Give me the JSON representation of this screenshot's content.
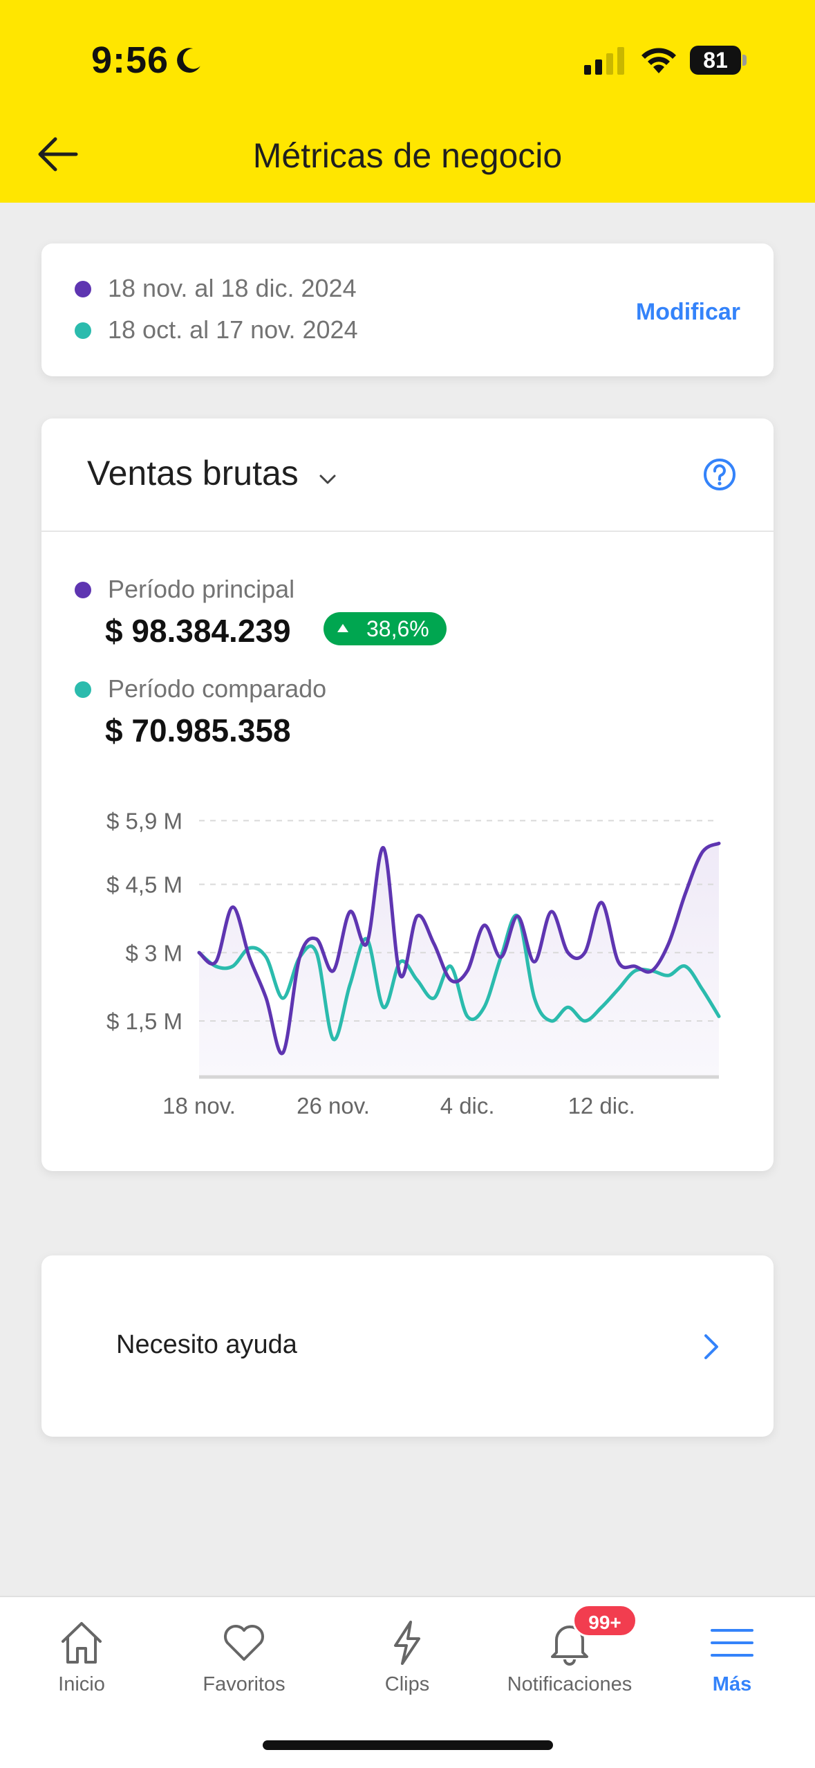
{
  "status_bar": {
    "time": "9:56",
    "battery": "81"
  },
  "header": {
    "title": "Métricas de negocio"
  },
  "period_card": {
    "main_period": "18 nov. al 18 dic. 2024",
    "compared_period": "18 oct. al 17 nov. 2024",
    "modify_label": "Modificar"
  },
  "metric_card": {
    "metric_selector": "Ventas brutas",
    "main_label": "Período principal",
    "main_amount": "$ 98.384.239",
    "growth": "38,6%",
    "compared_label": "Período comparado",
    "compared_amount": "$ 70.985.358"
  },
  "chart_data": {
    "type": "line",
    "y_ticks": [
      "$ 5,9 M",
      "$ 4,5 M",
      "$ 3 M",
      "$ 1,5 M"
    ],
    "y_tick_values": [
      5.9,
      4.5,
      3.0,
      1.5
    ],
    "x_ticks": [
      "18 nov.",
      "26 nov.",
      "4 dic.",
      "12 dic."
    ],
    "x_tick_days": [
      0,
      8,
      16,
      24
    ],
    "ylim": [
      0.3,
      6.3
    ],
    "xlim": [
      0,
      31
    ],
    "grid": true,
    "series": [
      {
        "color": "#5e35b1",
        "x": [
          0,
          1,
          2,
          3,
          4,
          5,
          6,
          7,
          8,
          9,
          10,
          11,
          12,
          13,
          14,
          15,
          16,
          17,
          18,
          19,
          20,
          21,
          22,
          23,
          24,
          25,
          26,
          27,
          28,
          29,
          30,
          31
        ],
        "values": [
          3.0,
          2.8,
          4.0,
          2.9,
          2.0,
          0.8,
          2.9,
          3.3,
          2.6,
          3.9,
          3.2,
          5.3,
          2.5,
          3.8,
          3.2,
          2.4,
          2.6,
          3.6,
          2.9,
          3.8,
          2.8,
          3.9,
          3.0,
          3.0,
          4.1,
          2.8,
          2.7,
          2.6,
          3.2,
          4.3,
          5.2,
          5.4
        ]
      },
      {
        "color": "#2bbbad",
        "x": [
          0,
          1,
          2,
          3,
          4,
          5,
          6,
          7,
          8,
          9,
          10,
          11,
          12,
          13,
          14,
          15,
          16,
          17,
          18,
          19,
          20,
          21,
          22,
          23,
          24,
          25,
          26,
          27,
          28,
          29,
          30,
          31
        ],
        "values": [
          3.0,
          2.7,
          2.7,
          3.1,
          2.9,
          2.0,
          2.9,
          3.0,
          1.1,
          2.3,
          3.3,
          1.8,
          2.8,
          2.4,
          2.0,
          2.7,
          1.6,
          1.8,
          2.9,
          3.8,
          2.0,
          1.5,
          1.8,
          1.5,
          1.8,
          2.2,
          2.6,
          2.6,
          2.5,
          2.7,
          2.2,
          1.6
        ]
      }
    ]
  },
  "help_card": {
    "label": "Necesito ayuda"
  },
  "tabbar": {
    "items": [
      {
        "label": "Inicio",
        "icon": "home-icon"
      },
      {
        "label": "Favoritos",
        "icon": "heart-icon"
      },
      {
        "label": "Clips",
        "icon": "lightning-icon"
      },
      {
        "label": "Notificaciones",
        "icon": "bell-icon",
        "badge": "99+"
      },
      {
        "label": "Más",
        "icon": "menu-icon",
        "active": true
      }
    ]
  },
  "colors": {
    "header": "#ffe600",
    "accent": "#3483fa",
    "main_series": "#5e35b1",
    "compared_series": "#2bbbad",
    "positive": "#00a650",
    "badge": "#f23d4f"
  }
}
